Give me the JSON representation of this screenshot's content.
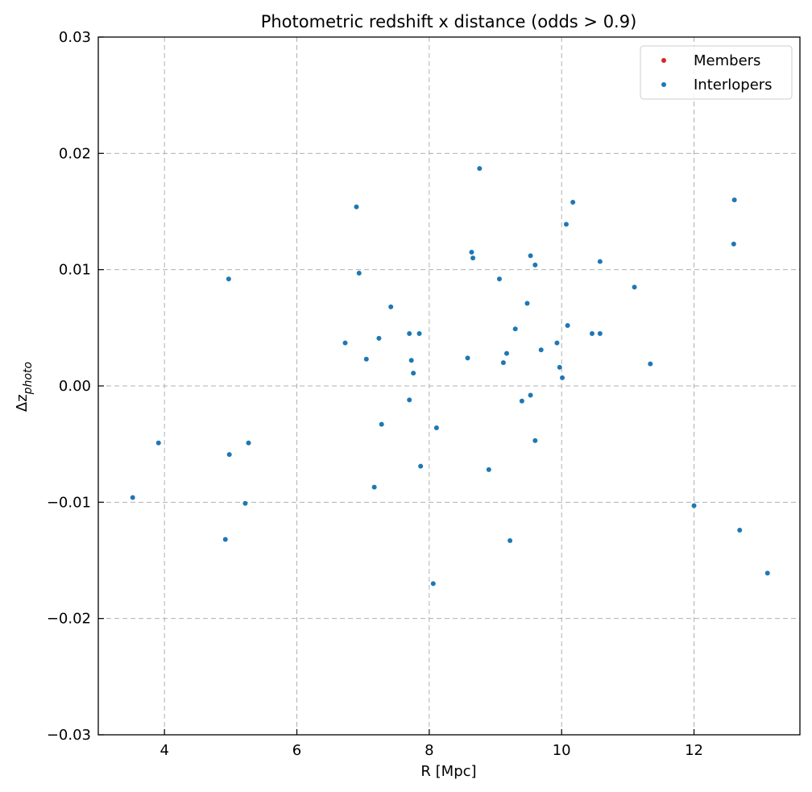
{
  "chart_data": {
    "type": "scatter",
    "title": "Photometric redshift x distance (odds > 0.9)",
    "xlabel": "R [Mpc]",
    "ylabel_main": "Δz",
    "ylabel_sub": "photo",
    "xlim": [
      3.0,
      13.6
    ],
    "ylim": [
      -0.03,
      0.03
    ],
    "xticks": [
      4,
      6,
      8,
      10,
      12
    ],
    "xtick_labels": [
      "4",
      "6",
      "8",
      "10",
      "12"
    ],
    "yticks": [
      -0.03,
      -0.02,
      -0.01,
      0.0,
      0.01,
      0.02,
      0.03
    ],
    "ytick_labels": [
      "−0.03",
      "−0.02",
      "−0.01",
      "0.00",
      "0.01",
      "0.02",
      "0.03"
    ],
    "grid": true,
    "legend_position": "top-right",
    "series": [
      {
        "name": "Members",
        "color": "#d62728",
        "points": []
      },
      {
        "name": "Interlopers",
        "color": "#1f77b4",
        "points": [
          [
            3.52,
            -0.0096
          ],
          [
            3.91,
            -0.0049
          ],
          [
            4.92,
            -0.0132
          ],
          [
            4.97,
            0.0092
          ],
          [
            4.98,
            -0.0059
          ],
          [
            5.22,
            -0.0101
          ],
          [
            5.27,
            -0.0049
          ],
          [
            6.73,
            0.0037
          ],
          [
            6.9,
            0.0154
          ],
          [
            6.94,
            0.0097
          ],
          [
            7.05,
            0.0023
          ],
          [
            7.17,
            -0.0087
          ],
          [
            7.24,
            0.0041
          ],
          [
            7.28,
            -0.0033
          ],
          [
            7.42,
            0.0068
          ],
          [
            7.7,
            0.0045
          ],
          [
            7.7,
            -0.0012
          ],
          [
            7.73,
            0.0022
          ],
          [
            7.76,
            0.0011
          ],
          [
            7.85,
            0.0045
          ],
          [
            7.87,
            -0.0069
          ],
          [
            8.06,
            -0.017
          ],
          [
            8.11,
            -0.0036
          ],
          [
            8.58,
            0.0024
          ],
          [
            8.64,
            0.0115
          ],
          [
            8.66,
            0.011
          ],
          [
            8.76,
            0.0187
          ],
          [
            8.9,
            -0.0072
          ],
          [
            9.06,
            0.0092
          ],
          [
            9.12,
            0.002
          ],
          [
            9.17,
            0.0028
          ],
          [
            9.22,
            -0.0133
          ],
          [
            9.3,
            0.0049
          ],
          [
            9.4,
            -0.0013
          ],
          [
            9.48,
            0.0071
          ],
          [
            9.53,
            0.0112
          ],
          [
            9.53,
            -0.0008
          ],
          [
            9.6,
            0.0104
          ],
          [
            9.6,
            -0.0047
          ],
          [
            9.69,
            0.0031
          ],
          [
            9.93,
            0.0037
          ],
          [
            9.97,
            0.0016
          ],
          [
            10.01,
            0.0007
          ],
          [
            10.07,
            0.0139
          ],
          [
            10.09,
            0.0052
          ],
          [
            10.17,
            0.0158
          ],
          [
            10.46,
            0.0045
          ],
          [
            10.58,
            0.0107
          ],
          [
            10.58,
            0.0045
          ],
          [
            11.1,
            0.0085
          ],
          [
            11.34,
            0.0019
          ],
          [
            12.0,
            -0.0103
          ],
          [
            12.6,
            0.0122
          ],
          [
            12.61,
            0.016
          ],
          [
            12.69,
            -0.0124
          ],
          [
            13.11,
            -0.0161
          ]
        ]
      }
    ]
  }
}
